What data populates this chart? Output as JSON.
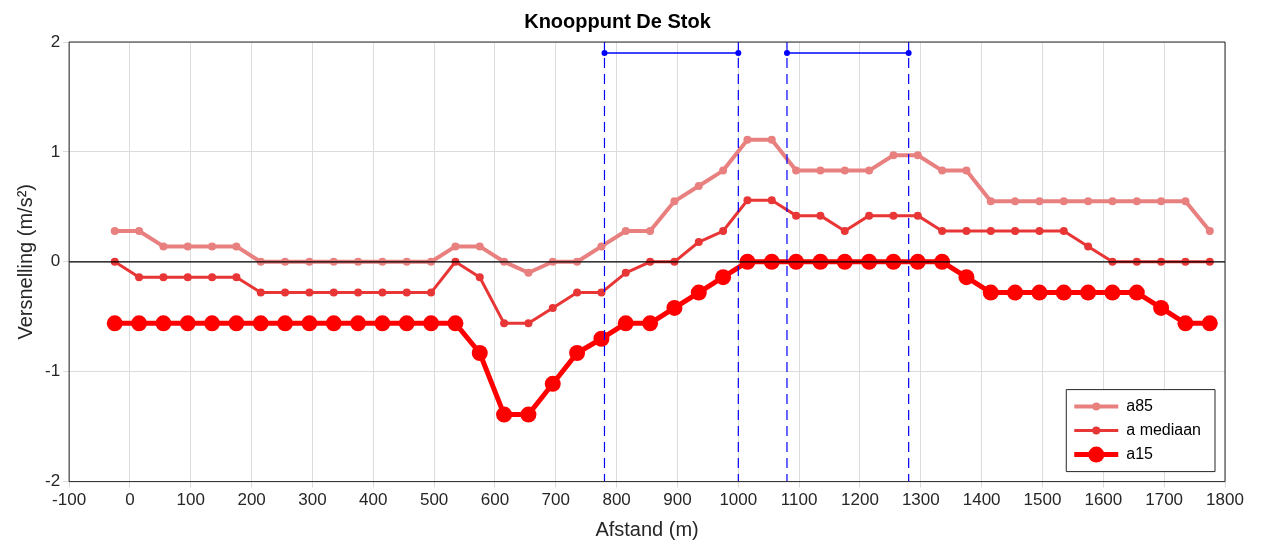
{
  "chart_data": {
    "type": "line",
    "title": "Knooppunt De Stok",
    "xlabel": "Afstand (m)",
    "ylabel": "Versnelling (m/s²)",
    "x": [
      -25,
      15,
      55,
      95,
      135,
      175,
      215,
      255,
      295,
      335,
      375,
      415,
      455,
      495,
      535,
      575,
      615,
      655,
      695,
      735,
      775,
      815,
      855,
      895,
      935,
      975,
      1015,
      1055,
      1095,
      1135,
      1175,
      1215,
      1255,
      1295,
      1335,
      1375,
      1415,
      1455,
      1495,
      1535,
      1575,
      1615,
      1655,
      1695,
      1735,
      1775
    ],
    "series": [
      {
        "name": "a85",
        "color": "#e88080",
        "values": [
          0.28,
          0.28,
          0.14,
          0.14,
          0.14,
          0.14,
          0,
          0,
          0,
          0,
          0,
          0,
          0,
          0,
          0.14,
          0.14,
          0,
          -0.1,
          0,
          0,
          0.14,
          0.28,
          0.28,
          0.55,
          0.69,
          0.83,
          1.11,
          1.11,
          0.83,
          0.83,
          0.83,
          0.83,
          0.97,
          0.97,
          0.83,
          0.83,
          0.55,
          0.55,
          0.55,
          0.55,
          0.55,
          0.55,
          0.55,
          0.55,
          0.55,
          0.28
        ]
      },
      {
        "name": "a mediaan",
        "color": "#e83535",
        "values": [
          0,
          -0.14,
          -0.14,
          -0.14,
          -0.14,
          -0.14,
          -0.28,
          -0.28,
          -0.28,
          -0.28,
          -0.28,
          -0.28,
          -0.28,
          -0.28,
          0,
          -0.14,
          -0.56,
          -0.56,
          -0.42,
          -0.28,
          -0.28,
          -0.1,
          0,
          0,
          0.18,
          0.28,
          0.56,
          0.56,
          0.42,
          0.42,
          0.28,
          0.42,
          0.42,
          0.42,
          0.28,
          0.28,
          0.28,
          0.28,
          0.28,
          0.28,
          0.14,
          0,
          0,
          0,
          0,
          0
        ]
      },
      {
        "name": "a15",
        "color": "#ff0000",
        "values": [
          -0.56,
          -0.56,
          -0.56,
          -0.56,
          -0.56,
          -0.56,
          -0.56,
          -0.56,
          -0.56,
          -0.56,
          -0.56,
          -0.56,
          -0.56,
          -0.56,
          -0.56,
          -0.83,
          -1.39,
          -1.39,
          -1.11,
          -0.83,
          -0.7,
          -0.56,
          -0.56,
          -0.42,
          -0.28,
          -0.14,
          0,
          0,
          0,
          0,
          0,
          0,
          0,
          0,
          0,
          -0.14,
          -0.28,
          -0.28,
          -0.28,
          -0.28,
          -0.28,
          -0.28,
          -0.28,
          -0.42,
          -0.56,
          -0.56
        ]
      },
      {
        "color": "#0000ff",
        "x": [
          780,
          1000
        ],
        "values": [
          1.9,
          1.9
        ]
      },
      {
        "color": "#0000ff",
        "x": [
          1080,
          1280
        ],
        "values": [
          1.9,
          1.9
        ]
      }
    ],
    "ref_lines": [
      {
        "axis": "y",
        "value": 0,
        "color": "#000000",
        "line_style": "solid"
      },
      {
        "axis": "x",
        "value": 780,
        "color": "#0000ff",
        "line_style": "dashed"
      },
      {
        "axis": "x",
        "value": 1000,
        "color": "#0000ff",
        "line_style": "dashed"
      },
      {
        "axis": "x",
        "value": 1080,
        "color": "#0000ff",
        "line_style": "dashed"
      },
      {
        "axis": "x",
        "value": 1280,
        "color": "#0000ff",
        "line_style": "dashed"
      }
    ],
    "xlim": [
      -100,
      1800
    ],
    "xticks": [
      -100,
      0,
      100,
      200,
      300,
      400,
      500,
      600,
      700,
      800,
      900,
      1000,
      1100,
      1200,
      1300,
      1400,
      1500,
      1600,
      1700,
      1800
    ],
    "ylim": [
      -2,
      2
    ],
    "yticks": [
      -2,
      -1,
      0,
      1,
      2
    ],
    "grid": true,
    "legend": "bottom right",
    "marker": "circle",
    "line_style": "solid"
  }
}
